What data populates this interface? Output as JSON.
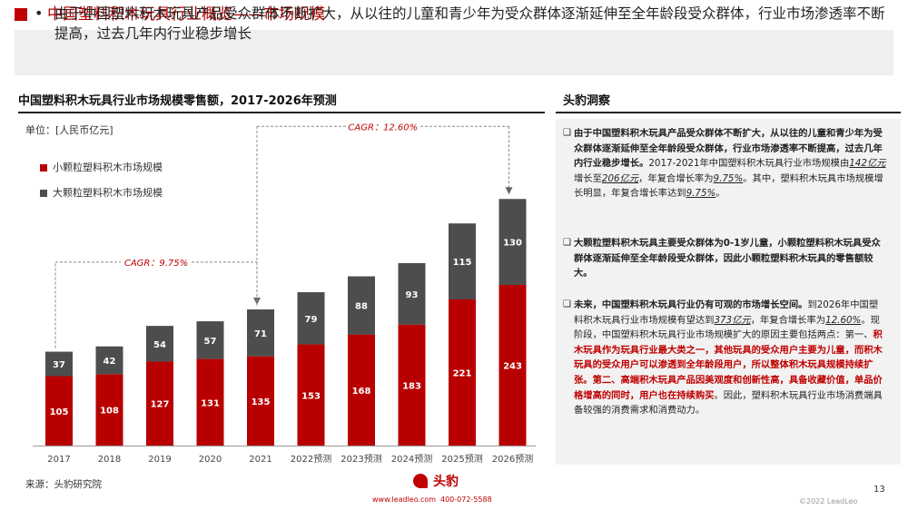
{
  "header": {
    "title": "中国塑料积木玩具行业概览——市场规模",
    "summary": "由于中国塑料积木玩具产品受众群体不断扩大，从以往的儿童和青少年为受众群体逐渐延伸至全年龄段受众群体，行业市场渗透率不断提高，过去几年内行业稳步增长"
  },
  "chart_section": {
    "title": "中国塑料积木玩具行业市场规模零售额，2017-2026年预测",
    "unit": "单位：[人民币亿元]",
    "source": "来源：头豹研究院"
  },
  "chart_data": {
    "type": "bar",
    "stacked": true,
    "categories": [
      "2017",
      "2018",
      "2019",
      "2020",
      "2021",
      "2022预测",
      "2023预测",
      "2024预测",
      "2025预测",
      "2026预测"
    ],
    "series": [
      {
        "name": "小颗粒塑料积木市场规模",
        "color": "#b80000",
        "values": [
          105,
          108,
          127,
          131,
          135,
          153,
          168,
          183,
          221,
          243
        ]
      },
      {
        "name": "大颗粒塑料积木市场规模",
        "color": "#4d4d4d",
        "values": [
          37,
          42,
          54,
          57,
          71,
          79,
          88,
          93,
          115,
          130
        ]
      }
    ],
    "annotations": [
      {
        "text": "CAGR：9.75%",
        "from": "2017",
        "to": "2021"
      },
      {
        "text": "CAGR：12.60%",
        "from": "2021",
        "to": "2026预测"
      }
    ],
    "legend_position": "top-left",
    "grid": false
  },
  "insights": {
    "title": "头豹洞察",
    "bullet": "❑",
    "p1": {
      "lead": "由于中国塑料积木玩具产品受众群体不断扩大，从以往的儿童和青少年为受众群体逐渐延伸至全年龄段受众群体，行业市场渗透率不断提高，过去几年内行业稳步增长。",
      "a": "2017-2021年中国塑料积木玩具行业市场规模由",
      "v1": "142亿元",
      "b": "增长至",
      "v2": "206亿元",
      "c": "，年复合增长率为",
      "v3": "9.75%",
      "d": "。其中，塑料积木玩具市场规模增长明显，年复合增长率达到",
      "v4": "9.75%",
      "e": "。"
    },
    "p2": "大颗粒塑料积木玩具主要受众群体为0-1岁儿童，小颗粒塑料积木玩具受众群体逐渐延伸至全年龄段受众群体，因此小颗粒塑料积木玩具的零售额较大。",
    "p3": {
      "lead": "未来，中国塑料积木玩具行业仍有可观的市场增长空间。",
      "a": "到2026年中国塑料积木玩具行业市场规模有望达到",
      "v1": "373亿元",
      "b": "，年复合增长率为",
      "v2": "12.60%",
      "c": "。现阶段，中国塑料积木玩具行业市场规模扩大的原因主要包括两点：第一、",
      "red": "积木玩具作为玩具行业最大类之一，其他玩具的受众用户主要为儿童，而积木玩具的受众用户可以渗透到全年龄段用户，所以整体积木玩具规模持续扩张。第二、高端积木玩具产品因美观度和创新性高，具备收藏价值，单品价格增高的同时，用户也在持续购买",
      "d": "。因此，塑料积木玩具行业市场消费端具备较强的消费需求和消费动力。"
    }
  },
  "footer": {
    "logo": "头豹",
    "website": "www.leadleo.com",
    "phone": "400-072-5588",
    "page": "13",
    "copyright": "©2022 LeadLeo"
  }
}
